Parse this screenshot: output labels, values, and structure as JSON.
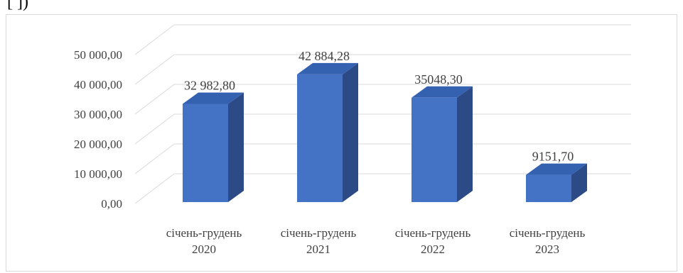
{
  "header_fragment": "[ ])",
  "chart_data": {
    "type": "bar",
    "style": "3d-column",
    "title": "",
    "xlabel": "",
    "ylabel": "",
    "categories": [
      [
        "січень-грудень",
        "2020"
      ],
      [
        "січень-грудень",
        "2021"
      ],
      [
        "січень-грудень",
        "2022"
      ],
      [
        "січень-грудень",
        "2023"
      ]
    ],
    "values": [
      32982.8,
      42884.28,
      35048.3,
      9151.7
    ],
    "data_labels": [
      "32 982,80",
      "42 884,28",
      "35048,30",
      "9151,70"
    ],
    "y_ticks": [
      {
        "value": 0,
        "label": "0,00"
      },
      {
        "value": 10000,
        "label": "10 000,00"
      },
      {
        "value": 20000,
        "label": "20 000,00"
      },
      {
        "value": 30000,
        "label": "30 000,00"
      },
      {
        "value": 40000,
        "label": "40 000,00"
      },
      {
        "value": 50000,
        "label": "50 000,00"
      }
    ],
    "ylim": [
      0,
      50000
    ],
    "grid": true,
    "legend": "none",
    "colors": {
      "front": "#4472c4",
      "top": "#3561b1",
      "side": "#2b4a86",
      "grid": "#d9d9d9",
      "text": "#404040"
    }
  }
}
